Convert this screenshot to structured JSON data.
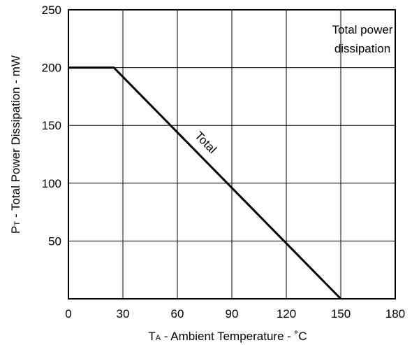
{
  "chart_data": {
    "type": "line",
    "xlabel": {
      "main": "T",
      "sub": "A",
      "rest": " - Ambient Temperature - ˚C"
    },
    "ylabel": {
      "main": "P",
      "sub": "T",
      "rest": " - Total Power Dissipation - mW"
    },
    "xlim": [
      0,
      180
    ],
    "ylim": [
      0,
      250
    ],
    "x_ticks": [
      0,
      30,
      60,
      90,
      120,
      150,
      180
    ],
    "y_ticks": [
      50,
      100,
      150,
      200,
      250
    ],
    "x_tick_labels": [
      "0",
      "30",
      "60",
      "90",
      "120",
      "150",
      "180"
    ],
    "y_tick_labels": [
      "50",
      "100",
      "150",
      "200",
      "250"
    ],
    "grid": true,
    "series": [
      {
        "name": "Total",
        "x": [
          0,
          25,
          150
        ],
        "y": [
          200,
          200,
          0
        ]
      }
    ],
    "annotations": {
      "box_text": [
        "Total power",
        "dissipation"
      ]
    }
  }
}
